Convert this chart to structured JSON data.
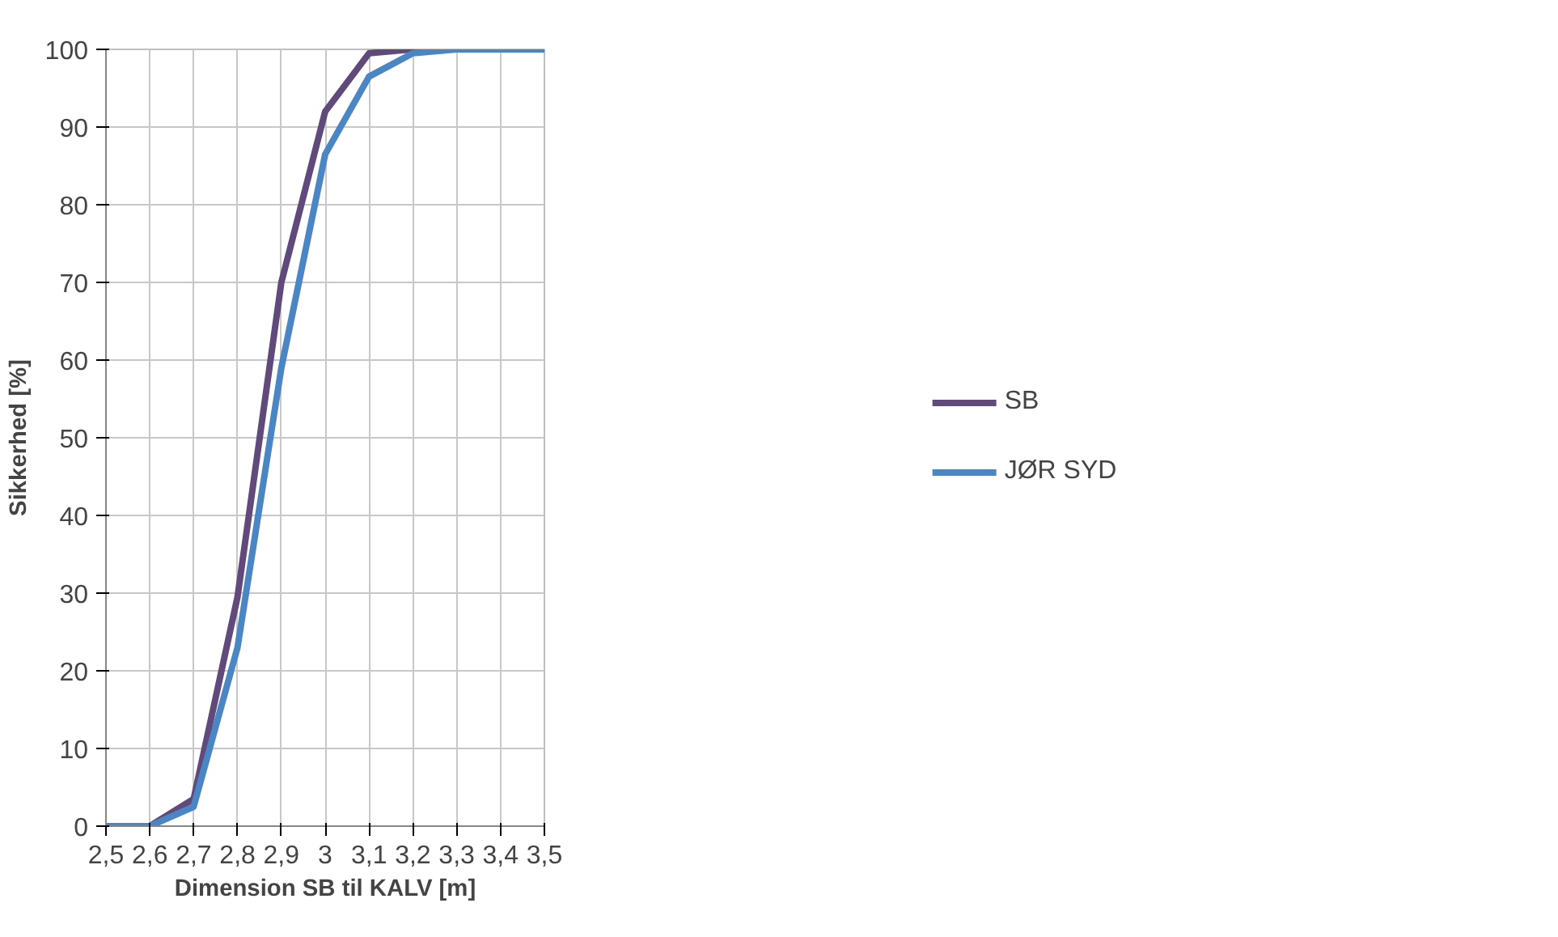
{
  "chart_data": {
    "type": "line",
    "xlabel": "Dimension SB til KALV [m]",
    "ylabel": "Sikkerhed [%]",
    "categories": [
      "2,5",
      "2,6",
      "2,7",
      "2,8",
      "2,9",
      "3",
      "3,1",
      "3,2",
      "3,3",
      "3,4",
      "3,5"
    ],
    "series": [
      {
        "name": "SB",
        "color": "#604a7b",
        "values": [
          0,
          0,
          3.5,
          29.5,
          70,
          92,
          99.5,
          100,
          100,
          null,
          null
        ]
      },
      {
        "name": "JØR SYD",
        "color": "#4a86c4",
        "values": [
          0,
          0,
          2.5,
          23,
          59,
          86.5,
          96.5,
          99.5,
          100,
          100,
          100
        ]
      }
    ],
    "ylim": [
      0,
      100
    ],
    "yticks": [
      0,
      10,
      20,
      30,
      40,
      50,
      60,
      70,
      80,
      90,
      100
    ],
    "grid": true,
    "legend": "right",
    "marker": "none",
    "line_style": "solid"
  }
}
